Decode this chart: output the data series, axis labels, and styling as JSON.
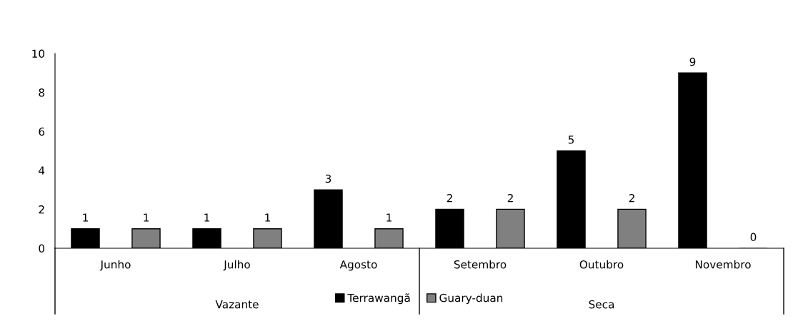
{
  "chart_data": {
    "type": "bar",
    "categories": [
      "Junho",
      "Julho",
      "Agosto",
      "Setembro",
      "Outubro",
      "Novembro"
    ],
    "series": [
      {
        "name": "Terrawangã",
        "color": "#000000",
        "values": [
          1,
          1,
          3,
          2,
          5,
          9
        ]
      },
      {
        "name": "Guary-duan",
        "color": "#808080",
        "values": [
          1,
          1,
          1,
          2,
          2,
          0
        ]
      }
    ],
    "annotations": [
      "Vazante",
      "Seca"
    ],
    "ylim": [
      0,
      10
    ],
    "yticks": [
      0,
      2,
      4,
      6,
      8,
      10
    ],
    "data_labels": true,
    "grid": false,
    "legend": "bottom"
  }
}
